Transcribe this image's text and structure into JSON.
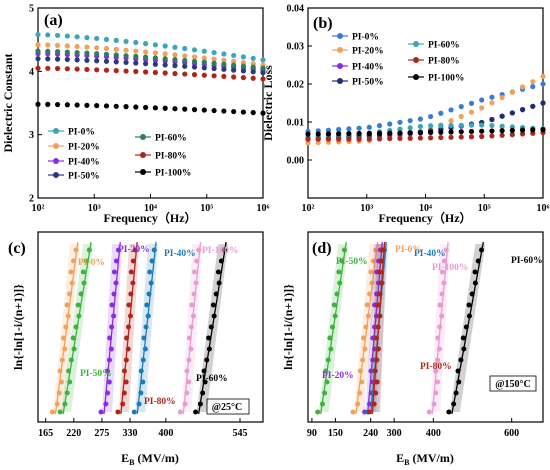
{
  "chart_data": [
    {
      "panel": "(a)",
      "type": "scatter",
      "xlabel": "Frequency（Hz）",
      "ylabel": "Dielectric Constant",
      "xscale": "log",
      "xlim": [
        100,
        1000000
      ],
      "ylim": [
        2,
        5
      ],
      "xticks": [
        "10²",
        "10³",
        "10⁴",
        "10⁵",
        "10⁶"
      ],
      "yticks": [
        "2",
        "3",
        "4",
        "5"
      ],
      "legend_position": "bottom-left",
      "series": [
        {
          "name": "PI-0%",
          "color": "#3aa6b8",
          "y_start": 4.58,
          "y_end": 4.18
        },
        {
          "name": "PI-20%",
          "color": "#f2a05a",
          "y_start": 4.42,
          "y_end": 4.1
        },
        {
          "name": "PI-40%",
          "color": "#8a2be2",
          "y_start": 4.28,
          "y_end": 4.02
        },
        {
          "name": "PI-50%",
          "color": "#2b3a7a",
          "y_start": 4.2,
          "y_end": 3.98
        },
        {
          "name": "PI-60%",
          "color": "#2e7d5b",
          "y_start": 4.32,
          "y_end": 4.05
        },
        {
          "name": "PI-80%",
          "color": "#b0251b",
          "y_start": 4.05,
          "y_end": 3.88
        },
        {
          "name": "PI-100%",
          "color": "#000000",
          "y_start": 3.48,
          "y_end": 3.34
        }
      ]
    },
    {
      "panel": "(b)",
      "type": "scatter",
      "xlabel": "Frequency（Hz）",
      "ylabel": "Dielectric Loss",
      "xscale": "log",
      "xlim": [
        100,
        1000000
      ],
      "ylim": [
        -0.01,
        0.04
      ],
      "xticks": [
        "10²",
        "10³",
        "10⁴",
        "10⁵",
        "10⁶"
      ],
      "yticks": [
        "0.00",
        "0.01",
        "0.02",
        "0.03",
        "0.04"
      ],
      "legend_position": "top",
      "series": [
        {
          "name": "PI-0%",
          "color": "#3b7bd8",
          "points": [
            [
              2,
              0.0075
            ],
            [
              3,
              0.0085
            ],
            [
              4,
              0.011
            ],
            [
              5,
              0.016
            ],
            [
              6,
              0.02
            ]
          ]
        },
        {
          "name": "PI-20%",
          "color": "#f2a05a",
          "points": [
            [
              2,
              0.0045
            ],
            [
              3,
              0.005
            ],
            [
              4,
              0.0075
            ],
            [
              5,
              0.014
            ],
            [
              6,
              0.022
            ]
          ]
        },
        {
          "name": "PI-40%",
          "color": "#8a2be2",
          "points": [
            [
              2,
              0.0055
            ],
            [
              3,
              0.006
            ],
            [
              4,
              0.0072
            ],
            [
              5,
              0.01
            ],
            [
              6,
              0.015
            ]
          ]
        },
        {
          "name": "PI-50%",
          "color": "#1a2f6e",
          "points": [
            [
              2,
              0.0058
            ],
            [
              3,
              0.0065
            ],
            [
              4,
              0.0075
            ],
            [
              5,
              0.01
            ],
            [
              6,
              0.015
            ]
          ]
        },
        {
          "name": "PI-60%",
          "color": "#3aa6b8",
          "points": [
            [
              2,
              0.006
            ],
            [
              3,
              0.007
            ],
            [
              4,
              0.009
            ],
            [
              5,
              0.0092
            ],
            [
              6,
              0.0082
            ]
          ]
        },
        {
          "name": "PI-80%",
          "color": "#b0251b",
          "points": [
            [
              2,
              0.0055
            ],
            [
              3,
              0.0055
            ],
            [
              4,
              0.0058
            ],
            [
              5,
              0.0062
            ],
            [
              6,
              0.0072
            ]
          ]
        },
        {
          "name": "PI-100%",
          "color": "#000000",
          "points": [
            [
              2,
              0.0068
            ],
            [
              3,
              0.007
            ],
            [
              4,
              0.0072
            ],
            [
              5,
              0.0076
            ],
            [
              6,
              0.008
            ]
          ]
        }
      ]
    },
    {
      "panel": "(c)",
      "type": "scatter",
      "xlabel": "E_B (MV/m)",
      "ylabel": "ln{-ln[1-i/(n+1)]}",
      "xlim": [
        150,
        590
      ],
      "xticks": [
        165,
        220,
        275,
        330,
        400,
        545
      ],
      "xticklabels": [
        "165",
        "220",
        "275",
        "330",
        "400",
        "545"
      ],
      "condition": "@25°C",
      "series": [
        {
          "name": "PI-0%",
          "color": "#f2a05a",
          "x_bottom": 190,
          "x_top": 222
        },
        {
          "name": "PI-50%",
          "color": "#3db33d",
          "x_bottom": 205,
          "x_top": 248
        },
        {
          "name": "PI-20%",
          "color": "#8a2be2",
          "x_bottom": 285,
          "x_top": 305
        },
        {
          "name": "PI-80%",
          "color": "#b0251b",
          "x_bottom": 318,
          "x_top": 338
        },
        {
          "name": "PI-40%",
          "color": "#1e7ab8",
          "x_bottom": 350,
          "x_top": 375
        },
        {
          "name": "PI-100%",
          "color": "#e79bd2",
          "x_bottom": 440,
          "x_top": 462
        },
        {
          "name": "PI-60%",
          "color": "#000000",
          "x_bottom": 470,
          "x_top": 512
        }
      ]
    },
    {
      "panel": "(d)",
      "type": "scatter",
      "xlabel": "E_B (MV/m)",
      "ylabel": "ln{-ln[1-i/(n+1)]}",
      "xlim": [
        80,
        680
      ],
      "xticks": [
        90,
        150,
        240,
        300,
        400,
        600
      ],
      "xticklabels": [
        "90",
        "150",
        "240",
        "300",
        "400",
        "600"
      ],
      "condition": "@150°C",
      "series": [
        {
          "name": "PI-50%",
          "color": "#3db33d",
          "x_bottom": 120,
          "x_top": 170
        },
        {
          "name": "PI-0%",
          "color": "#f2a05a",
          "x_bottom": 210,
          "x_top": 250
        },
        {
          "name": "PI-20%",
          "color": "#8a2be2",
          "x_bottom": 240,
          "x_top": 262
        },
        {
          "name": "PI-40%",
          "color": "#1e7ab8",
          "x_bottom": 248,
          "x_top": 272
        },
        {
          "name": "PI-80%",
          "color": "#b0251b",
          "x_bottom": 252,
          "x_top": 268
        },
        {
          "name": "PI-100%",
          "color": "#e79bd2",
          "x_bottom": 405,
          "x_top": 430
        },
        {
          "name": "PI-60%",
          "color": "#000000",
          "x_bottom": 455,
          "x_top": 520
        }
      ]
    }
  ],
  "panels": {
    "a": {
      "label": "(a)",
      "xlabel": "Frequency（Hz）",
      "ylabel": "Dielectric Constant"
    },
    "b": {
      "label": "(b)",
      "xlabel": "Frequency（Hz）",
      "ylabel": "Dielectric Loss"
    },
    "c": {
      "label": "(c)",
      "xlabel": "E",
      "xlabel_sub": "B",
      "xlabel_unit": " (MV/m)",
      "ylabel": "ln{-ln[1-i/(n+1)]}",
      "condition": "@25°C"
    },
    "d": {
      "label": "(d)",
      "xlabel": "E",
      "xlabel_sub": "B",
      "xlabel_unit": " (MV/m)",
      "ylabel": "ln{-ln[1-i/(n+1)]}",
      "condition": "@150°C"
    }
  }
}
